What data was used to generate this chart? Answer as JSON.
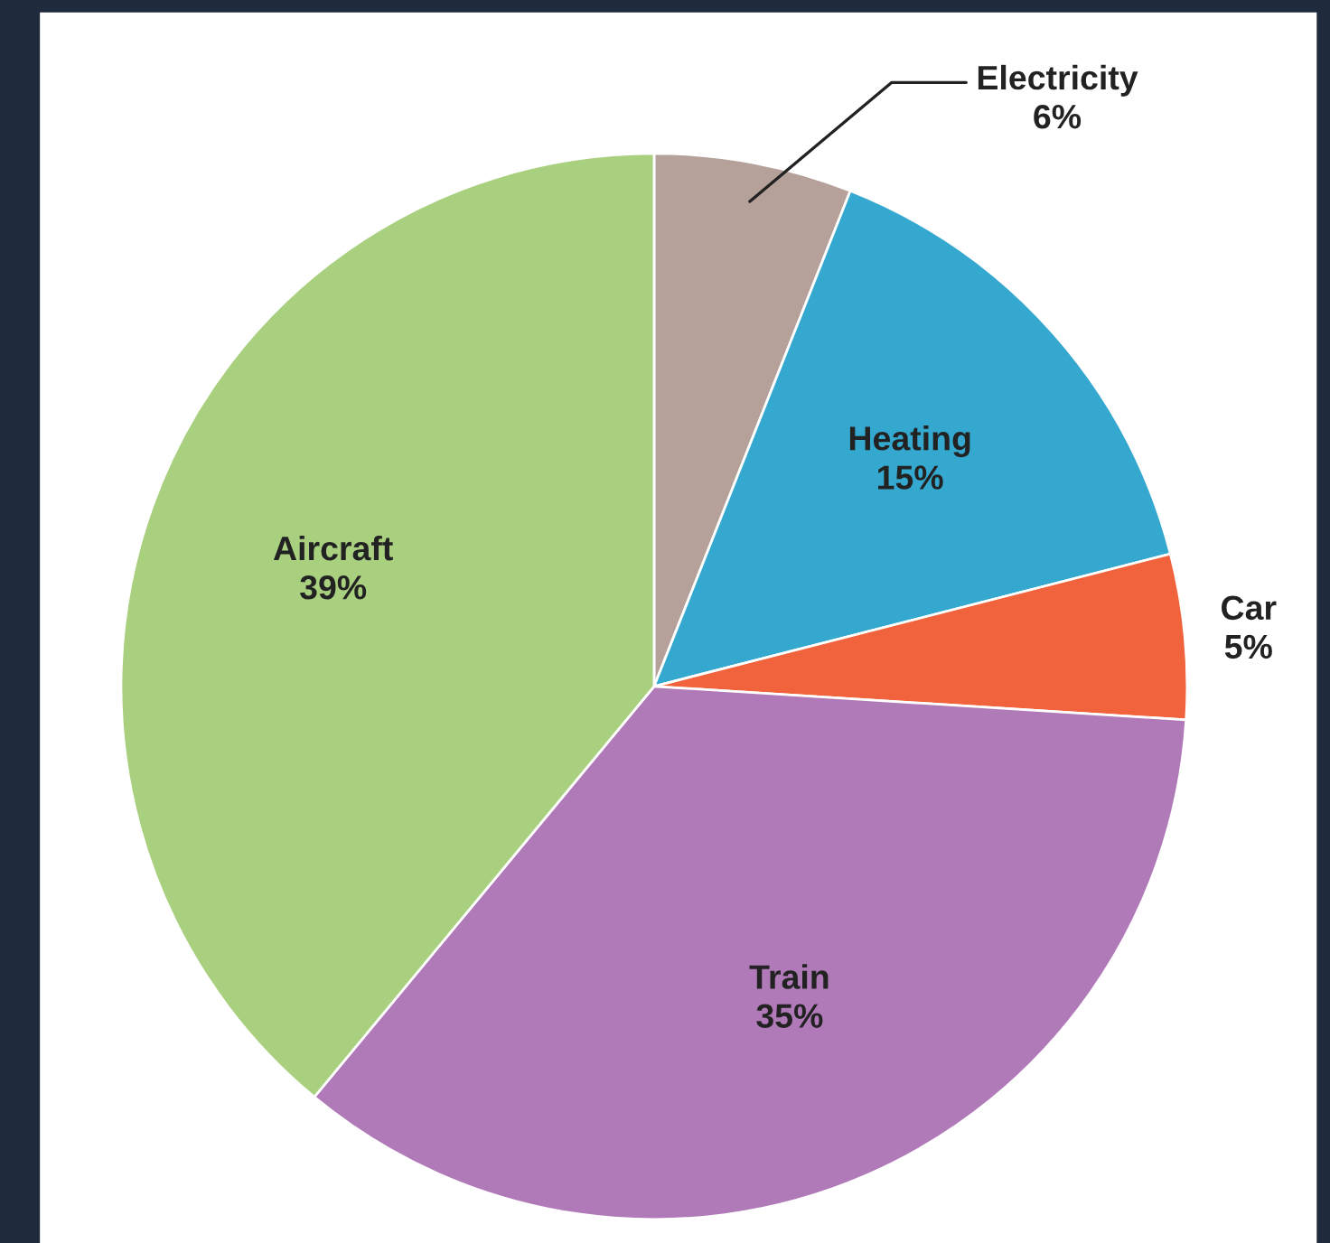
{
  "chart_data": {
    "type": "pie",
    "categories": [
      "Electricity",
      "Heating",
      "Car",
      "Train",
      "Aircraft"
    ],
    "values": [
      6,
      15,
      5,
      35,
      39
    ],
    "value_labels": [
      "6%",
      "15%",
      "5%",
      "35%",
      "39%"
    ],
    "colors": [
      "#b5a199",
      "#35a8d0",
      "#f0633c",
      "#b07ab8",
      "#a9d07f"
    ]
  }
}
